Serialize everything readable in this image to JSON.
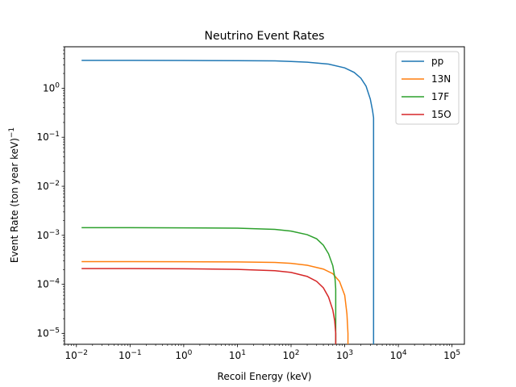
{
  "chart_data": {
    "type": "line",
    "title": "Neutrino Event Rates",
    "xlabel": "Recoil Energy (keV)",
    "ylabel_main": "Event Rate (ton year keV)",
    "ylabel_sup": "−1",
    "xscale": "log",
    "yscale": "log",
    "xlim": [
      0.006,
      170000
    ],
    "ylim": [
      6e-06,
      7
    ],
    "grid": false,
    "legend_position": "top-right",
    "x_ticks": [
      {
        "value": 0.01,
        "mant": "10",
        "exp": "−2"
      },
      {
        "value": 0.1,
        "mant": "10",
        "exp": "−1"
      },
      {
        "value": 1,
        "mant": "10",
        "exp": "0"
      },
      {
        "value": 10,
        "mant": "10",
        "exp": "1"
      },
      {
        "value": 100,
        "mant": "10",
        "exp": "2"
      },
      {
        "value": 1000,
        "mant": "10",
        "exp": "3"
      },
      {
        "value": 10000,
        "mant": "10",
        "exp": "4"
      },
      {
        "value": 100000,
        "mant": "10",
        "exp": "5"
      }
    ],
    "y_ticks": [
      {
        "value": 1e-05,
        "mant": "10",
        "exp": "−5"
      },
      {
        "value": 0.0001,
        "mant": "10",
        "exp": "−4"
      },
      {
        "value": 0.001,
        "mant": "10",
        "exp": "−3"
      },
      {
        "value": 0.01,
        "mant": "10",
        "exp": "−2"
      },
      {
        "value": 0.1,
        "mant": "10",
        "exp": "−1"
      },
      {
        "value": 1,
        "mant": "10",
        "exp": "0"
      }
    ],
    "series": [
      {
        "name": "pp",
        "color": "#1f77b4",
        "x": [
          0.0125,
          0.1,
          1,
          10,
          50,
          100,
          200,
          500,
          1000,
          1500,
          2000,
          2500,
          3000,
          3300,
          3450,
          3450
        ],
        "y": [
          3.7,
          3.7,
          3.68,
          3.65,
          3.6,
          3.5,
          3.4,
          3.1,
          2.6,
          2.1,
          1.6,
          1.1,
          0.6,
          0.35,
          0.25,
          6e-06
        ]
      },
      {
        "name": "13N",
        "color": "#ff7f0e",
        "x": [
          0.0125,
          0.1,
          1,
          10,
          50,
          100,
          200,
          400,
          600,
          800,
          1000,
          1100,
          1150,
          1150
        ],
        "y": [
          0.00029,
          0.00029,
          0.000289,
          0.000287,
          0.00028,
          0.000268,
          0.000245,
          0.000205,
          0.000165,
          0.000115,
          6e-05,
          2.5e-05,
          1e-05,
          6e-06
        ]
      },
      {
        "name": "17F",
        "color": "#2ca02c",
        "x": [
          0.0125,
          0.1,
          1,
          10,
          50,
          100,
          200,
          300,
          400,
          500,
          600,
          660,
          680,
          680
        ],
        "y": [
          0.00143,
          0.00143,
          0.00142,
          0.0014,
          0.00132,
          0.00122,
          0.00103,
          0.00085,
          0.00063,
          0.00042,
          0.00024,
          0.00013,
          8e-05,
          6e-06
        ]
      },
      {
        "name": "15O",
        "color": "#d62728",
        "x": [
          0.0125,
          0.1,
          1,
          10,
          50,
          100,
          200,
          300,
          400,
          500,
          600,
          650,
          680,
          680
        ],
        "y": [
          0.00021,
          0.00021,
          0.000208,
          0.000202,
          0.00019,
          0.000175,
          0.000145,
          0.000115,
          8.5e-05,
          5.5e-05,
          3e-05,
          1.8e-05,
          1e-05,
          6e-06
        ]
      }
    ]
  }
}
